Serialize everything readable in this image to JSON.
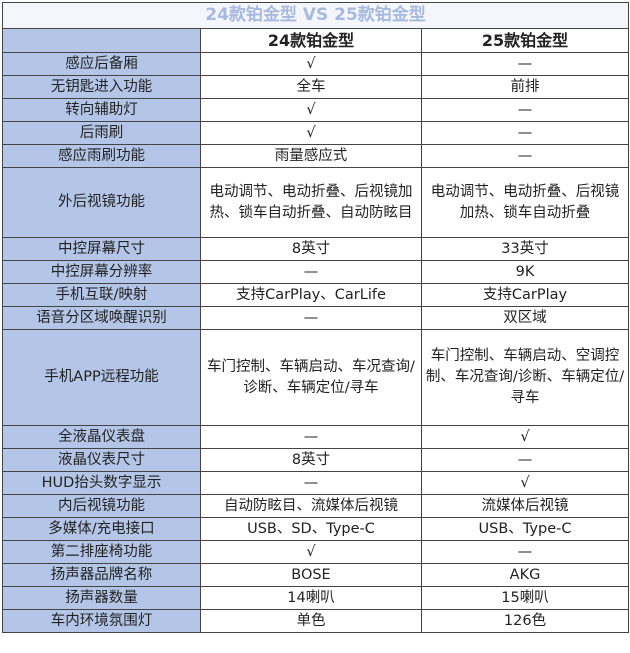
{
  "title": "24款铂金型 VS 25款铂金型",
  "headers": [
    "",
    "24款铂金型",
    "25款铂金型"
  ],
  "rows": [
    [
      "感应后备厢",
      "√",
      "—"
    ],
    [
      "无钥匙进入功能",
      "全车",
      "前排"
    ],
    [
      "转向辅助灯",
      "√",
      "—"
    ],
    [
      "后雨刷",
      "√",
      "—"
    ],
    [
      "感应雨刷功能",
      "雨量感应式",
      "—"
    ],
    [
      "外后视镜功能",
      "电动调节、电动折叠、后视镜加热、锁车自动折叠、自动防眩目",
      "电动调节、电动折叠、后视镜加热、锁车自动折叠"
    ],
    [
      "中控屏幕尺寸",
      "8英寸",
      "33英寸"
    ],
    [
      "中控屏幕分辨率",
      "—",
      "9K"
    ],
    [
      "手机互联/映射",
      "支持CarPlay、CarLife",
      "支持CarPlay"
    ],
    [
      "语音分区域唤醒识别",
      "—",
      "双区域"
    ],
    [
      "手机APP远程功能",
      "车门控制、车辆启动、车况查询/诊断、车辆定位/寻车",
      "车门控制、车辆启动、空调控制、车况查询/诊断、车辆定位/寻车"
    ],
    [
      "全液晶仪表盘",
      "—",
      "√"
    ],
    [
      "液晶仪表尺寸",
      "8英寸",
      "—"
    ],
    [
      "HUD抬头数字显示",
      "—",
      "√"
    ],
    [
      "内后视镜功能",
      "自动防眩目、流媒体后视镜",
      "流媒体后视镜"
    ],
    [
      "多媒体/充电接口",
      "USB、SD、Type-C",
      "USB、Type-C"
    ],
    [
      "第二排座椅功能",
      "√",
      "—"
    ],
    [
      "扬声器品牌名称",
      "BOSE",
      "AKG"
    ],
    [
      "扬声器数量",
      "14喇叭",
      "15喇叭"
    ],
    [
      "车内环境氛围灯",
      "单色",
      "126色"
    ]
  ],
  "colors": {
    "label_bg": "#b4c6e7",
    "title_text": "#a6badf"
  }
}
